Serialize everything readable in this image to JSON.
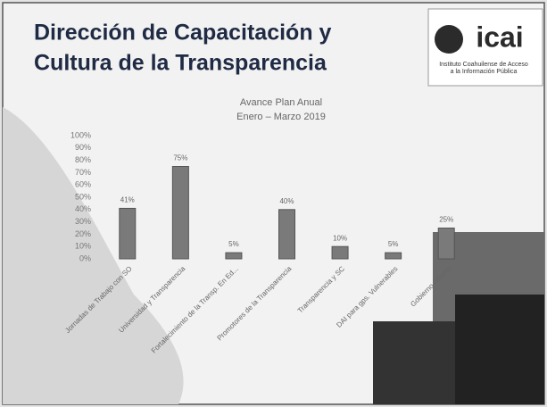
{
  "header": {
    "title_line1": "Dirección de Capacitación y",
    "title_line2": "Cultura de la Transparencia",
    "logo": "icai",
    "institute_line1": "Instituto Coahuilense de Acceso",
    "institute_line2": "a la Información Pública"
  },
  "chart_data": {
    "type": "bar",
    "title": "Avance Plan Anual",
    "subtitle": "Enero – Marzo 2019",
    "categories": [
      "Jornadas de Trabajo con SO",
      "Universidad y Transparencia",
      "Fortalecimiento de la Transp. En Ed...",
      "Promotores de la Transparencia",
      "Transparencia y SC",
      "DAI para gps. Vulnerables",
      "Gobierno Abierto"
    ],
    "values": [
      41,
      75,
      5,
      40,
      10,
      5,
      25
    ],
    "value_labels": [
      "41%",
      "75%",
      "5%",
      "40%",
      "10%",
      "5%",
      "25%"
    ],
    "color": "#7a7a7a",
    "ylim": [
      0,
      100
    ],
    "yticks": [
      {
        "value": 0,
        "label": "0%"
      },
      {
        "value": 10,
        "label": "10%"
      },
      {
        "value": 20,
        "label": "20%"
      },
      {
        "value": 30,
        "label": "30%"
      },
      {
        "value": 40,
        "label": "40%"
      },
      {
        "value": 50,
        "label": "50%"
      },
      {
        "value": 60,
        "label": "60%"
      },
      {
        "value": 70,
        "label": "70%"
      },
      {
        "value": 80,
        "label": "80%"
      },
      {
        "value": 90,
        "label": "90%"
      },
      {
        "value": 100,
        "label": "100%"
      }
    ],
    "grid": false
  }
}
